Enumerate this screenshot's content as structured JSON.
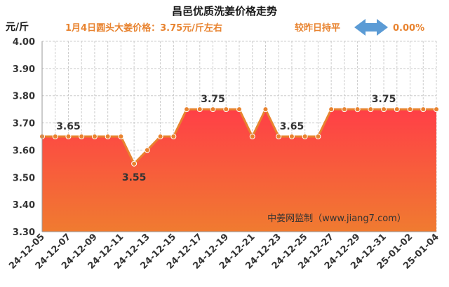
{
  "chart_data": {
    "type": "area",
    "title": "昌邑优质洗姜价格走势",
    "subtitle": "1月4日圆头大姜价格：3.75元/斤左右",
    "ylabel": "元/斤",
    "ylim": [
      3.3,
      4.0
    ],
    "yticks": [
      "4.00",
      "3.90",
      "3.80",
      "3.70",
      "3.60",
      "3.50",
      "3.40",
      "3.30"
    ],
    "xtick_labels": [
      "24-12-05",
      "24-12-07",
      "24-12-09",
      "24-12-11",
      "24-12-13",
      "24-12-15",
      "24-12-17",
      "24-12-19",
      "24-12-21",
      "24-12-23",
      "24-12-25",
      "24-12-27",
      "24-12-29",
      "24-12-31",
      "25-01-02",
      "25-01-04"
    ],
    "values": [
      3.65,
      3.65,
      3.65,
      3.65,
      3.65,
      3.65,
      3.65,
      3.55,
      3.6,
      3.65,
      3.65,
      3.75,
      3.75,
      3.75,
      3.75,
      3.75,
      3.65,
      3.75,
      3.65,
      3.65,
      3.65,
      3.65,
      3.75,
      3.75,
      3.75,
      3.75,
      3.75,
      3.75,
      3.75,
      3.75,
      3.75
    ],
    "data_labels": [
      {
        "index": 2,
        "text": "3.65"
      },
      {
        "index": 7,
        "text": "3.55"
      },
      {
        "index": 13,
        "text": "3.75"
      },
      {
        "index": 19,
        "text": "3.65"
      },
      {
        "index": 26,
        "text": "3.75"
      }
    ],
    "grid": true,
    "colors": {
      "line": "#e8832f",
      "marker": "#e8832f",
      "fill_top": "#ff3f47",
      "fill_bottom": "#f07b30",
      "grid": "#cccccc"
    }
  },
  "compare": {
    "label": "较昨日持平",
    "value": "0.00%",
    "arrow_color": "#5b9bd5"
  },
  "watermark": "中姜网监制（www.jiang7.com）"
}
